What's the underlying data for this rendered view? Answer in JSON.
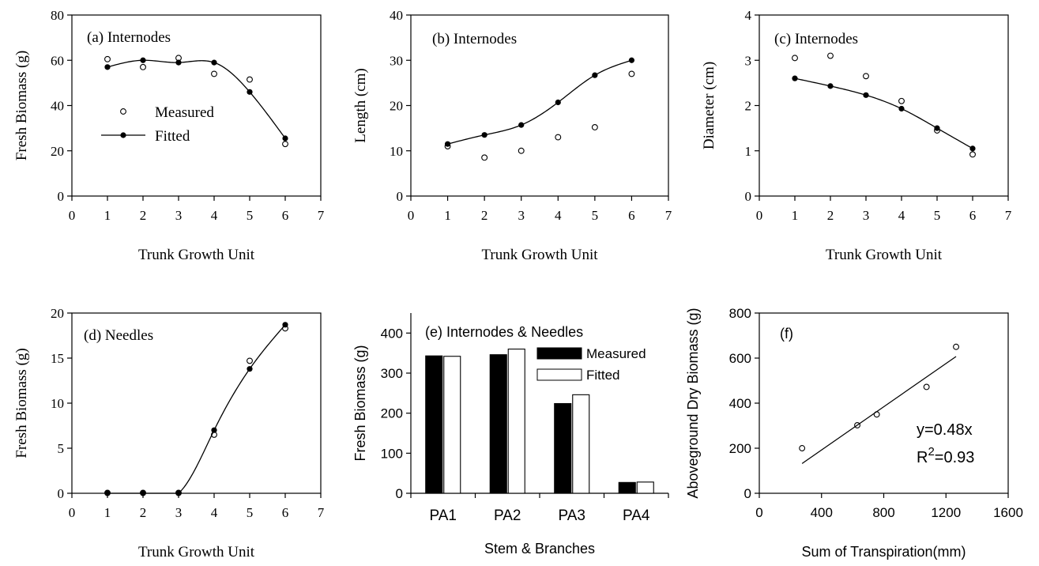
{
  "chart_data": [
    {
      "id": "a",
      "type": "scatter",
      "font": "serif",
      "title": "(a) Internodes",
      "xlabel": "Trunk Growth Unit",
      "ylabel": "Fresh Biomass (g)",
      "xlim": [
        0,
        7
      ],
      "ylim": [
        0,
        80
      ],
      "xticks": [
        0,
        1,
        2,
        3,
        4,
        5,
        6,
        7
      ],
      "yticks": [
        0,
        20,
        40,
        60,
        80
      ],
      "legend": {
        "measured": "Measured",
        "fitted": "Fitted"
      },
      "series": [
        {
          "name": "Measured",
          "kind": "open-points",
          "x": [
            1,
            2,
            3,
            4,
            5,
            6
          ],
          "y": [
            60.5,
            57,
            61,
            54,
            51.5,
            23
          ]
        },
        {
          "name": "Fitted",
          "kind": "line-points",
          "x": [
            1,
            2,
            3,
            4,
            5,
            6
          ],
          "y": [
            57,
            60,
            59,
            59,
            46,
            25.5
          ]
        }
      ]
    },
    {
      "id": "b",
      "type": "scatter",
      "font": "serif",
      "title": "(b) Internodes",
      "xlabel": "Trunk Growth Unit",
      "ylabel": "Length (cm)",
      "xlim": [
        0,
        7
      ],
      "ylim": [
        0,
        40
      ],
      "xticks": [
        0,
        1,
        2,
        3,
        4,
        5,
        6,
        7
      ],
      "yticks": [
        0,
        10,
        20,
        30,
        40
      ],
      "series": [
        {
          "name": "Measured",
          "kind": "open-points",
          "x": [
            1,
            2,
            3,
            4,
            5,
            6
          ],
          "y": [
            11,
            8.5,
            10,
            13,
            15.2,
            27
          ]
        },
        {
          "name": "Fitted",
          "kind": "line-points",
          "x": [
            1,
            2,
            3,
            4,
            5,
            6
          ],
          "y": [
            11.5,
            13.5,
            15.7,
            20.7,
            26.7,
            30
          ]
        }
      ]
    },
    {
      "id": "c",
      "type": "scatter",
      "font": "serif",
      "title": "(c) Internodes",
      "xlabel": "Trunk Growth Unit",
      "ylabel": "Diameter (cm)",
      "xlim": [
        0,
        7
      ],
      "ylim": [
        0,
        4
      ],
      "xticks": [
        0,
        1,
        2,
        3,
        4,
        5,
        6,
        7
      ],
      "yticks": [
        0,
        1,
        2,
        3,
        4
      ],
      "series": [
        {
          "name": "Measured",
          "kind": "open-points",
          "x": [
            1,
            2,
            3,
            4,
            5,
            6
          ],
          "y": [
            3.05,
            3.1,
            2.65,
            2.1,
            1.45,
            0.92
          ]
        },
        {
          "name": "Fitted",
          "kind": "line-points",
          "x": [
            1,
            2,
            3,
            4,
            5,
            6
          ],
          "y": [
            2.6,
            2.43,
            2.23,
            1.93,
            1.5,
            1.05
          ]
        }
      ]
    },
    {
      "id": "d",
      "type": "scatter",
      "font": "serif",
      "title": "(d) Needles",
      "xlabel": "Trunk Growth Unit",
      "ylabel": "Fresh Biomass (g)",
      "xlim": [
        0,
        7
      ],
      "ylim": [
        0,
        20
      ],
      "xticks": [
        0,
        1,
        2,
        3,
        4,
        5,
        6,
        7
      ],
      "yticks": [
        0,
        5,
        10,
        15,
        20
      ],
      "series": [
        {
          "name": "Measured",
          "kind": "open-points",
          "x": [
            1,
            2,
            3,
            4,
            5,
            6
          ],
          "y": [
            0.05,
            0.05,
            0.05,
            6.5,
            14.7,
            18.3
          ]
        },
        {
          "name": "Fitted",
          "kind": "line-points",
          "x": [
            1,
            2,
            3,
            4,
            5,
            6
          ],
          "y": [
            0,
            0,
            0,
            7,
            13.8,
            18.7
          ]
        }
      ]
    },
    {
      "id": "e",
      "type": "bar",
      "font": "sans",
      "title": "(e) Internodes & Needles",
      "xlabel": "Stem & Branches",
      "ylabel": "Fresh Biomass (g)",
      "ylim": [
        0,
        450
      ],
      "yticks": [
        0,
        100,
        200,
        300,
        400
      ],
      "categories": [
        "PA1",
        "PA2",
        "PA3",
        "PA4"
      ],
      "legend": {
        "measured": "Measured",
        "fitted": "Fitted"
      },
      "series": [
        {
          "name": "Measured",
          "color": "#000000",
          "values": [
            343,
            346,
            224,
            27
          ]
        },
        {
          "name": "Fitted",
          "color": "#ffffff",
          "values": [
            342,
            360,
            246,
            28
          ]
        }
      ]
    },
    {
      "id": "f",
      "type": "scatter",
      "font": "sans",
      "title": "(f)",
      "xlabel": "Sum of Transpiration(mm)",
      "ylabel": "Aboveground Dry Biomass (g)",
      "xlim": [
        0,
        1600
      ],
      "ylim": [
        0,
        800
      ],
      "xticks": [
        0,
        400,
        800,
        1200,
        1600
      ],
      "yticks": [
        0,
        200,
        400,
        600,
        800
      ],
      "annotation": {
        "equation": "y=0.48x",
        "r2_prefix": "R",
        "r2_sup": "2",
        "r2_value": "=0.93"
      },
      "series": [
        {
          "name": "Measured",
          "kind": "open-points",
          "x": [
            275,
            630,
            755,
            1075,
            1265
          ],
          "y": [
            200,
            302,
            350,
            472,
            650
          ]
        }
      ],
      "regression": {
        "slope": 0.48,
        "x_range": [
          275,
          1265
        ]
      }
    }
  ]
}
